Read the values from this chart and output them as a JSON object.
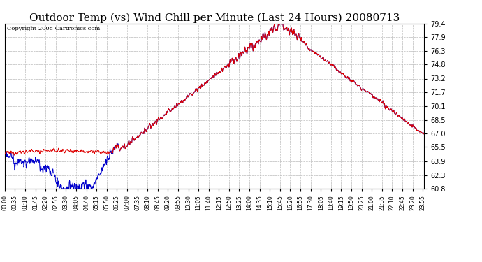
{
  "title": "Outdoor Temp (vs) Wind Chill per Minute (Last 24 Hours) 20080713",
  "copyright": "Copyright 2008 Cartronics.com",
  "ylabel_ticks": [
    60.8,
    62.3,
    63.9,
    65.5,
    67.0,
    68.5,
    70.1,
    71.7,
    73.2,
    74.8,
    76.3,
    77.9,
    79.4
  ],
  "ymin": 60.8,
  "ymax": 79.4,
  "background_color": "#ffffff",
  "plot_background": "#ffffff",
  "grid_color": "#bbbbbb",
  "title_fontsize": 11,
  "copyright_fontsize": 6,
  "tick_fontsize": 7,
  "xtick_fontsize": 5.5,
  "red_color": "#dd0000",
  "blue_color": "#0000cc",
  "xtick_labels": [
    "00:00",
    "00:35",
    "01:10",
    "01:45",
    "02:20",
    "02:55",
    "03:30",
    "04:05",
    "04:40",
    "05:15",
    "05:50",
    "06:25",
    "07:00",
    "07:35",
    "08:10",
    "08:45",
    "09:20",
    "09:55",
    "10:30",
    "11:05",
    "11:40",
    "12:15",
    "12:50",
    "13:25",
    "14:00",
    "14:35",
    "15:10",
    "15:45",
    "16:20",
    "16:55",
    "17:30",
    "18:05",
    "18:40",
    "19:15",
    "19:50",
    "20:25",
    "21:00",
    "21:35",
    "22:10",
    "22:45",
    "23:20",
    "23:55"
  ]
}
